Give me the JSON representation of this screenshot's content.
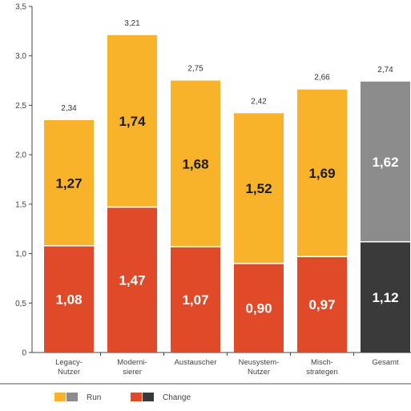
{
  "chart_data": {
    "type": "bar",
    "stacked": true,
    "categories": [
      [
        "Legacy-",
        "Nutzer"
      ],
      [
        "Moderni-",
        "sierer"
      ],
      [
        "Austauscher"
      ],
      [
        "Neusystem-",
        "Nutzer"
      ],
      [
        "Misch-",
        "strategen"
      ],
      [
        "Gesamt"
      ]
    ],
    "series": [
      {
        "name": "Change",
        "values": [
          1.08,
          1.47,
          1.07,
          0.9,
          0.97,
          1.12
        ],
        "labels": [
          "1,08",
          "1,47",
          "1,07",
          "0,90",
          "0,97",
          "1,12"
        ]
      },
      {
        "name": "Run",
        "values": [
          1.27,
          1.74,
          1.68,
          1.52,
          1.69,
          1.62
        ],
        "labels": [
          "1,27",
          "1,74",
          "1,68",
          "1,52",
          "1,69",
          "1,62"
        ]
      }
    ],
    "totals": [
      2.34,
      3.21,
      2.75,
      2.42,
      2.66,
      2.74
    ],
    "total_labels": [
      "2,34",
      "3,21",
      "2,75",
      "2,42",
      "2,66",
      "2,74"
    ],
    "ylim": [
      0,
      3.5
    ],
    "yticks": [
      0,
      0.5,
      1.0,
      1.5,
      2.0,
      2.5,
      3.0,
      3.5
    ],
    "ytick_labels": [
      "0",
      "0,5",
      "1,0",
      "1,5",
      "2,0",
      "2,5",
      "3,0",
      "3,5"
    ],
    "grid": false,
    "legend_position": "bottom-left",
    "colors": {
      "run": "#f9b32b",
      "change": "#e04a28",
      "run_total": "#8c8c8c",
      "change_total": "#3a3a3a",
      "axis": "#444444"
    },
    "legend": [
      {
        "label": "Run",
        "swatches": [
          "#f9b32b",
          "#8c8c8c"
        ]
      },
      {
        "label": "Change",
        "swatches": [
          "#e04a28",
          "#3a3a3a"
        ]
      }
    ]
  }
}
